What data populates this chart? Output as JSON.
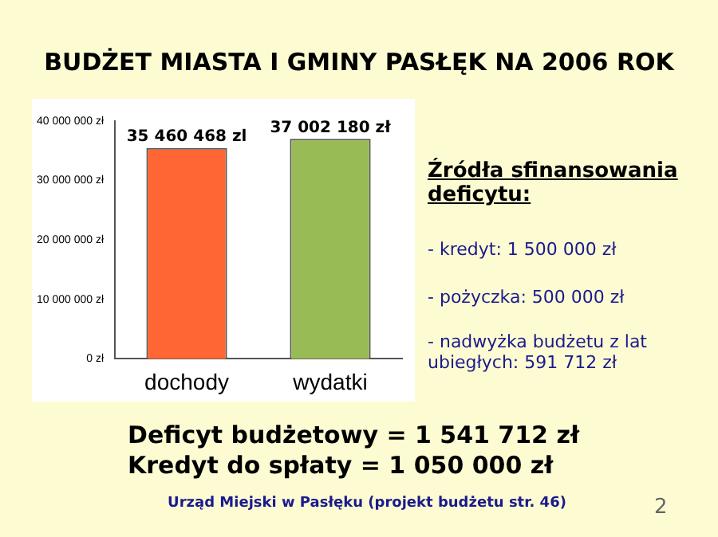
{
  "chart_data": {
    "type": "bar",
    "title": "BUDŻET MIASTA I GMINY PASŁĘK NA 2006 ROK",
    "categories": [
      "dochody",
      "wydatki"
    ],
    "values": [
      35460468,
      37002180
    ],
    "colors": [
      "#ff6633",
      "#99bb55"
    ],
    "value_labels": [
      "35 460 468 zl",
      "37 002 180 zł"
    ],
    "ylim": [
      0,
      40000000
    ],
    "yticks": [
      {
        "value": 0,
        "label": "0 zł"
      },
      {
        "value": 10000000,
        "label": "10 000 000 zł"
      },
      {
        "value": 20000000,
        "label": "20 000 000 zł"
      },
      {
        "value": 30000000,
        "label": "30 000 000 zł"
      },
      {
        "value": 40000000,
        "label": "40 000 000 zł"
      }
    ],
    "grid": false,
    "annotations": [
      "Źródła sfinansowania deficytu:",
      "- kredyt: 1 500 000 zł",
      "- pożyczka: 500 000 zł",
      "- nadwyżka budżetu z lat ubiegłych: 591 712 zł",
      "Deficyt budżetowy = 1 541 712 zł",
      "Kredyt do spłaty = 1 050 000 zł",
      "Urząd Miejski w Pasłęku (projekt budżetu str. 46)",
      "2"
    ]
  }
}
